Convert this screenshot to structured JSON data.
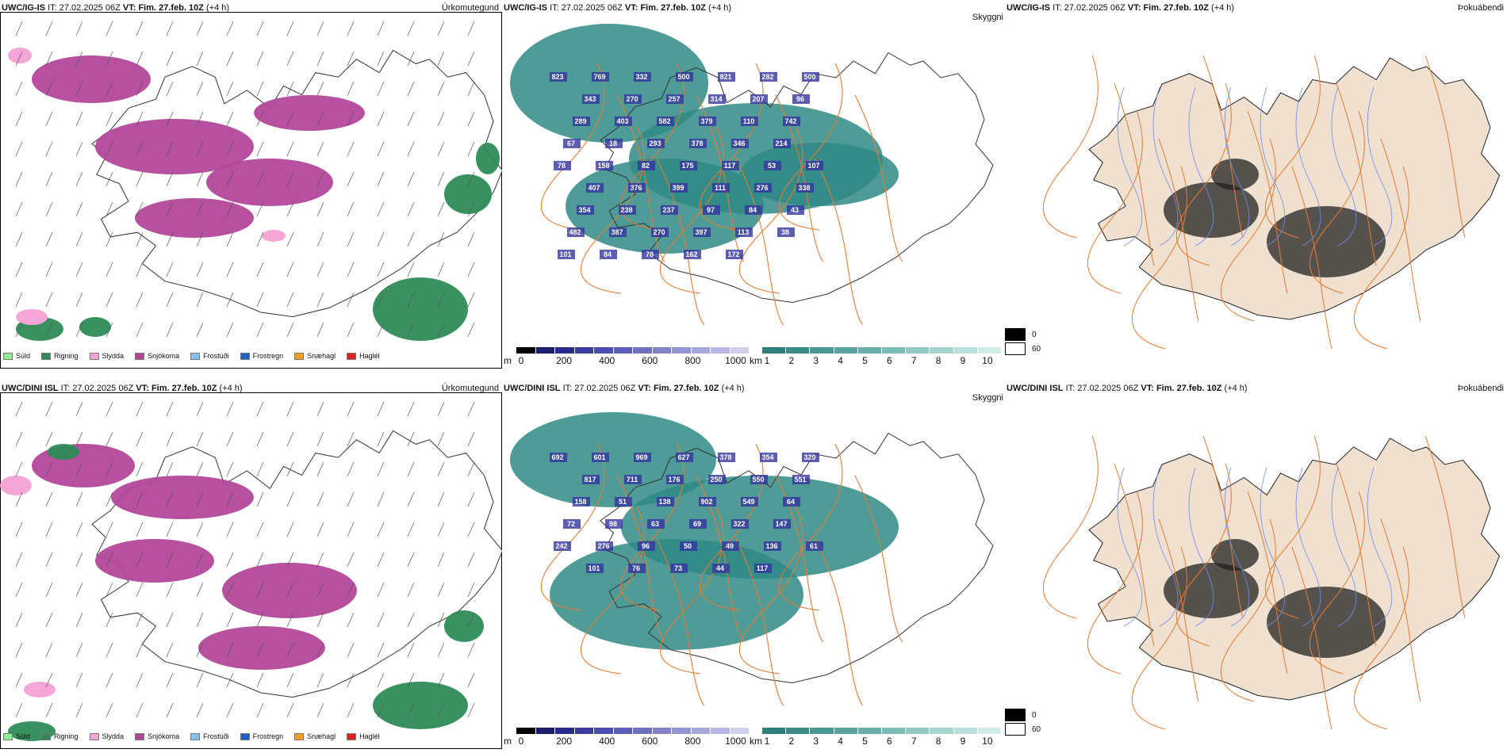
{
  "rows": [
    {
      "model": "UWC/IG-IS",
      "it_label": "IT:",
      "it_value": "27.02.2025 06Z",
      "vt_label": "VT:",
      "vt_value": "Fim. 27.feb. 10Z",
      "lead": "(+4 h)",
      "precip_title": "Úrkomutegund",
      "vis_title": "Skyggni",
      "fog_title": "Þokuábendi"
    },
    {
      "model": "UWC/DINI ISL",
      "it_label": "IT:",
      "it_value": "27.02.2025 06Z",
      "vt_label": "VT:",
      "vt_value": "Fim. 27.feb. 10Z",
      "lead": "(+4 h)",
      "precip_title": "Úrkomutegund",
      "vis_title": "Skyggni",
      "fog_title": "Þokuábendi"
    }
  ],
  "precip_legend": [
    {
      "label": "Súld",
      "color": "#90ee90"
    },
    {
      "label": "Rigning",
      "color": "#2e8b57"
    },
    {
      "label": "Slydda",
      "color": "#f4a6d7"
    },
    {
      "label": "Snjókoma",
      "color": "#b2479a"
    },
    {
      "label": "Frostúði",
      "color": "#87bff0"
    },
    {
      "label": "Frostregn",
      "color": "#1f5fbf"
    },
    {
      "label": "Snæhagl",
      "color": "#f0a020"
    },
    {
      "label": "Haglél",
      "color": "#e02020"
    }
  ],
  "cloud_base_scale": {
    "unit": "m",
    "ticks": [
      "0",
      "200",
      "400",
      "600",
      "800",
      "1000"
    ],
    "colors": [
      "#000000",
      "#1c1c6e",
      "#2a2a8a",
      "#3a3aa0",
      "#4c4cb0",
      "#5e5eb8",
      "#7070c0",
      "#8282c8",
      "#9494d0",
      "#a6a6d8",
      "#b8b8e0",
      "#d0d0ec"
    ]
  },
  "visibility_scale": {
    "unit": "km",
    "ticks": [
      "1",
      "2",
      "3",
      "4",
      "5",
      "6",
      "7",
      "8",
      "9",
      "10"
    ],
    "colors": [
      "#2f7f7a",
      "#3b8b86",
      "#4a9792",
      "#5aa39e",
      "#6cafaa",
      "#7ebbb6",
      "#92c7c2",
      "#a6d3ce",
      "#bbdfdb",
      "#d0ebe8"
    ]
  },
  "fog_legend": [
    {
      "label": "0",
      "color": "#000000"
    },
    {
      "label": "60",
      "color": "#ffffff"
    }
  ],
  "cloud_labels_top": [
    "823",
    "769",
    "332",
    "500",
    "821",
    "282",
    "500",
    "343",
    "270",
    "257",
    "314",
    "207",
    "96",
    "289",
    "403",
    "582",
    "379",
    "110",
    "742",
    "67",
    "18",
    "293",
    "378",
    "346",
    "214",
    "78",
    "158",
    "82",
    "175",
    "117",
    "53",
    "107",
    "407",
    "376",
    "399",
    "111",
    "276",
    "338",
    "354",
    "238",
    "237",
    "97",
    "84",
    "43",
    "482",
    "387",
    "270",
    "397",
    "113",
    "38",
    "101",
    "84",
    "78",
    "162",
    "172"
  ],
  "cloud_labels_bottom": [
    "692",
    "601",
    "969",
    "627",
    "378",
    "354",
    "320",
    "817",
    "711",
    "176",
    "250",
    "550",
    "551",
    "158",
    "51",
    "138",
    "902",
    "549",
    "64",
    "72",
    "98",
    "63",
    "69",
    "322",
    "147",
    "242",
    "276",
    "96",
    "50",
    "49",
    "136",
    "61",
    "101",
    "76",
    "73",
    "44",
    "117"
  ],
  "colors": {
    "snow": "#b2479a",
    "rain": "#2e8b57",
    "sleet": "#f4a6d7",
    "teal": "#2f8a85",
    "land": "#f0e0d0",
    "roads": "#e87a30",
    "rivers": "#6b8ff0"
  }
}
